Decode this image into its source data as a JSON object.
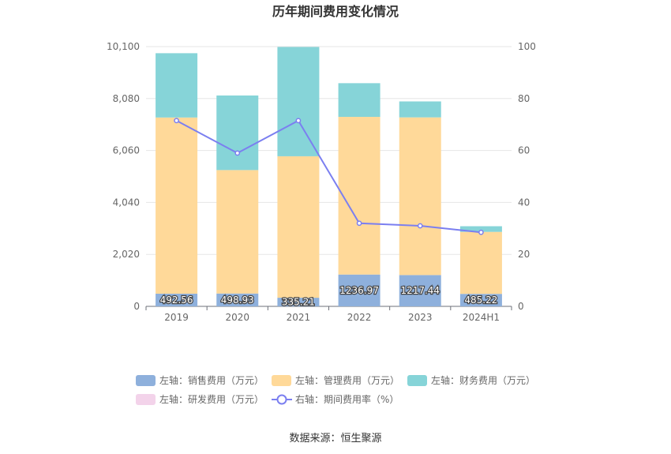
{
  "chart_data": {
    "type": "bar",
    "stacked": true,
    "title": "历年期间费用变化情况",
    "categories": [
      "2019",
      "2020",
      "2021",
      "2022",
      "2023",
      "2024H1"
    ],
    "y_left": {
      "min": 0,
      "max": 10100,
      "ticks": [
        "0",
        "2,020",
        "4,040",
        "6,060",
        "8,080",
        "10,100"
      ]
    },
    "y_right": {
      "min": 0,
      "max": 100,
      "ticks": [
        "0",
        "20",
        "40",
        "60",
        "80",
        "100"
      ]
    },
    "series": [
      {
        "name": "左轴：销售费用（万元）",
        "kind": "bar",
        "axis": "left",
        "color": "#8eb0dc",
        "values": [
          492.56,
          498.93,
          335.21,
          1236.97,
          1217.44,
          485.22
        ],
        "labels": [
          "492.56",
          "498.93",
          "335.21",
          "1236.97",
          "1217.44",
          "485.22"
        ]
      },
      {
        "name": "左轴：管理费用（万元）",
        "kind": "bar",
        "axis": "left",
        "color": "#ffd999",
        "values": [
          6850,
          4800,
          5500,
          6130,
          6130,
          2410
        ]
      },
      {
        "name": "左轴：财务费用（万元）",
        "kind": "bar",
        "axis": "left",
        "color": "#86d4d8",
        "values": [
          2500,
          2900,
          4250,
          1310,
          620,
          220
        ]
      },
      {
        "name": "左轴：研发费用（万元）",
        "kind": "bar",
        "axis": "left",
        "color": "#f3d3ea",
        "values": [
          0,
          0,
          0,
          0,
          0,
          0
        ]
      },
      {
        "name": "右轴：期间费用率（%）",
        "kind": "line",
        "axis": "right",
        "color": "#7b7ff0",
        "values": [
          71.5,
          59.0,
          71.5,
          32.0,
          31.0,
          28.5
        ]
      }
    ],
    "legend_position": "bottom",
    "source": "数据来源：恒生聚源"
  }
}
